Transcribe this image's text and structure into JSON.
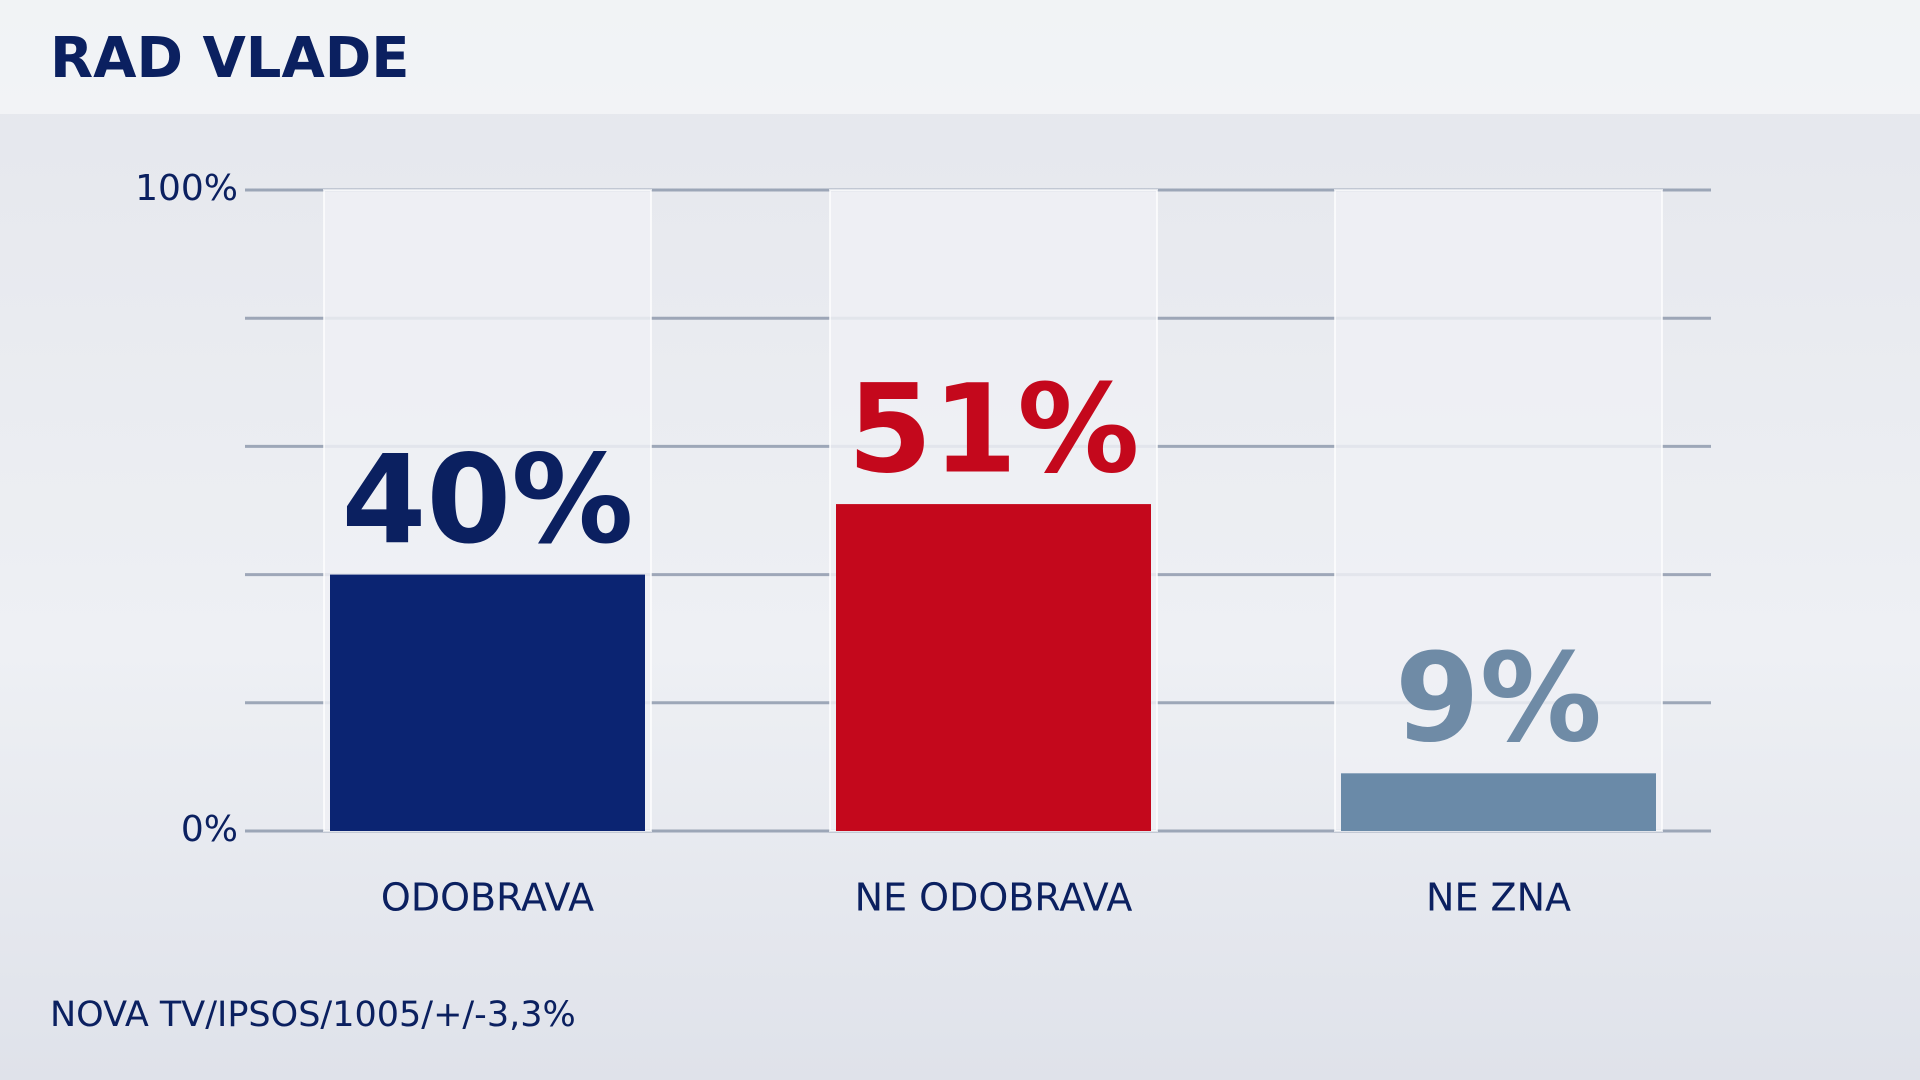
{
  "chart_data": {
    "type": "bar",
    "title": "RAD VLADE",
    "categories": [
      "ODOBRAVA",
      "NE ODOBRAVA",
      "NE ZNA"
    ],
    "values": [
      40,
      51,
      9
    ],
    "value_labels": [
      "40%",
      "51%",
      "9%"
    ],
    "colors": [
      "#0b2472",
      "#c4081c",
      "#6a8aa8"
    ],
    "label_colors": [
      "#0b2060",
      "#c4081c",
      "#6f8ba6"
    ],
    "ylim": [
      0,
      100
    ],
    "yticks": [
      {
        "value": 0,
        "label": "0%"
      },
      {
        "value": 20,
        "label": null
      },
      {
        "value": 40,
        "label": null
      },
      {
        "value": 60,
        "label": null
      },
      {
        "value": 80,
        "label": null
      },
      {
        "value": 100,
        "label": "100%"
      }
    ],
    "grid": true,
    "source": "NOVA TV/IPSOS/1005/+/-3,3%"
  }
}
